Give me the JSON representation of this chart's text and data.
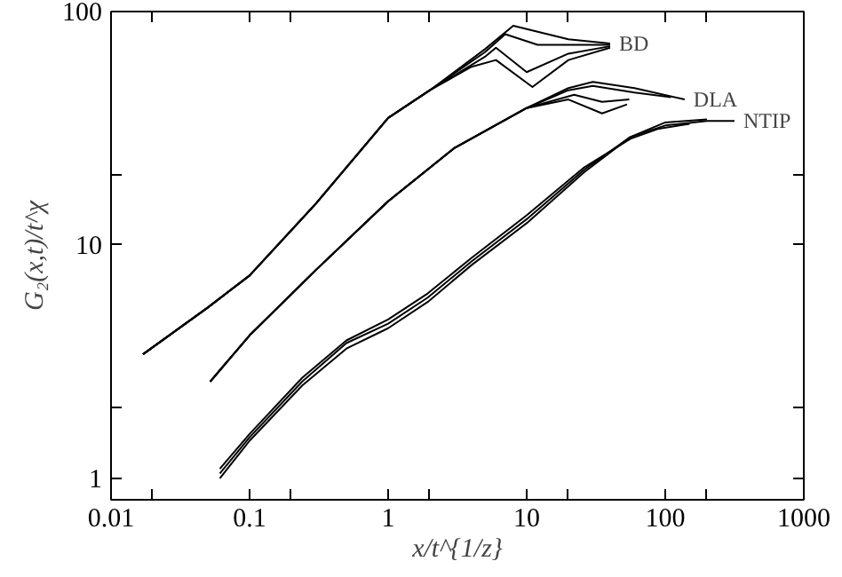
{
  "chart_data": {
    "type": "line",
    "xlabel": "x/t^{1/z}",
    "ylabel": "G₂(x,t)/t^χ",
    "log": "xy",
    "xlim": [
      0.01,
      1000
    ],
    "ylim": [
      0.81,
      100
    ],
    "xticks": [
      0.01,
      {
        "value": 0.02,
        "label": null
      },
      0.1,
      {
        "value": 0.2,
        "label": null
      },
      1,
      {
        "value": 2,
        "label": null
      },
      10,
      {
        "value": 20,
        "label": null
      },
      100,
      {
        "value": 200,
        "label": null
      },
      1000
    ],
    "yticks": [
      1,
      {
        "value": 2,
        "label": null
      },
      10,
      {
        "value": 20,
        "label": null
      },
      100
    ],
    "grid": false,
    "marker": "none",
    "line_style": "solid",
    "series": [
      {
        "name": "BD",
        "color": "#000000",
        "x": [
          0.017,
          0.05,
          0.1,
          0.3,
          1,
          2,
          5,
          8,
          12,
          20,
          40
        ],
        "values": [
          3.4,
          5.4,
          7.4,
          15,
          35,
          46,
          69,
          87,
          82,
          76,
          73
        ]
      },
      {
        "color": "#000000",
        "x": [
          0.017,
          0.05,
          0.1,
          0.3,
          1,
          2,
          5,
          7,
          12,
          20,
          40
        ],
        "values": [
          3.4,
          5.4,
          7.4,
          15,
          35,
          46,
          67,
          80,
          72,
          72,
          72
        ]
      },
      {
        "color": "#000000",
        "x": [
          0.017,
          0.05,
          0.1,
          0.3,
          1,
          2,
          5,
          6,
          10,
          20,
          40
        ],
        "values": [
          3.4,
          5.4,
          7.4,
          15,
          35,
          46,
          64,
          70,
          55,
          66,
          71
        ]
      },
      {
        "color": "#000000",
        "x": [
          0.017,
          0.05,
          0.1,
          0.3,
          1,
          2,
          4,
          6,
          11,
          20,
          40
        ],
        "values": [
          3.4,
          5.4,
          7.4,
          15,
          35,
          46,
          58,
          62,
          47.5,
          62,
          70
        ]
      },
      {
        "name": "DLA",
        "color": "#000000",
        "x": [
          0.052,
          0.1,
          0.3,
          1,
          3,
          10,
          20,
          30,
          60,
          138
        ],
        "values": [
          2.6,
          4.1,
          7.8,
          15.4,
          26,
          38.6,
          47,
          50,
          47,
          42
        ]
      },
      {
        "color": "#000000",
        "x": [
          0.052,
          0.1,
          0.3,
          1,
          3,
          10,
          20,
          30,
          60,
          110
        ],
        "values": [
          2.6,
          4.1,
          7.8,
          15.4,
          26,
          38.6,
          46,
          48,
          45,
          43
        ]
      },
      {
        "color": "#000000",
        "x": [
          0.052,
          0.1,
          0.3,
          1,
          3,
          10,
          22,
          35,
          55
        ],
        "values": [
          2.6,
          4.1,
          7.8,
          15.4,
          26,
          38.6,
          44,
          41,
          42
        ]
      },
      {
        "color": "#000000",
        "x": [
          0.052,
          0.1,
          0.3,
          1,
          3,
          10,
          20,
          35,
          53
        ],
        "values": [
          2.6,
          4.1,
          7.8,
          15.4,
          26,
          38.6,
          42,
          36.6,
          40
        ]
      },
      {
        "name": "NTIP",
        "color": "#000000",
        "x": [
          0.061,
          0.1,
          0.24,
          0.5,
          1,
          1.93,
          4,
          10,
          26,
          56,
          100,
          200,
          316
        ],
        "values": [
          1.05,
          1.5,
          2.6,
          3.8,
          4.6,
          5.95,
          8.5,
          12.9,
          21,
          29,
          32.5,
          34,
          34
        ]
      },
      {
        "color": "#000000",
        "x": [
          0.061,
          0.1,
          0.24,
          0.5,
          1,
          1.93,
          4,
          10,
          26,
          56,
          100,
          200
        ],
        "values": [
          1.0,
          1.45,
          2.5,
          3.6,
          4.4,
          5.7,
          8.2,
          12.4,
          20.5,
          29,
          33.5,
          34.5
        ]
      },
      {
        "color": "#000000",
        "x": [
          0.061,
          0.1,
          0.24,
          0.5,
          1,
          1.93,
          4,
          10,
          26,
          56,
          90,
          150
        ],
        "values": [
          1.1,
          1.55,
          2.7,
          3.9,
          4.8,
          6.2,
          8.8,
          13.4,
          21.5,
          28.5,
          31.5,
          33
        ]
      }
    ]
  }
}
